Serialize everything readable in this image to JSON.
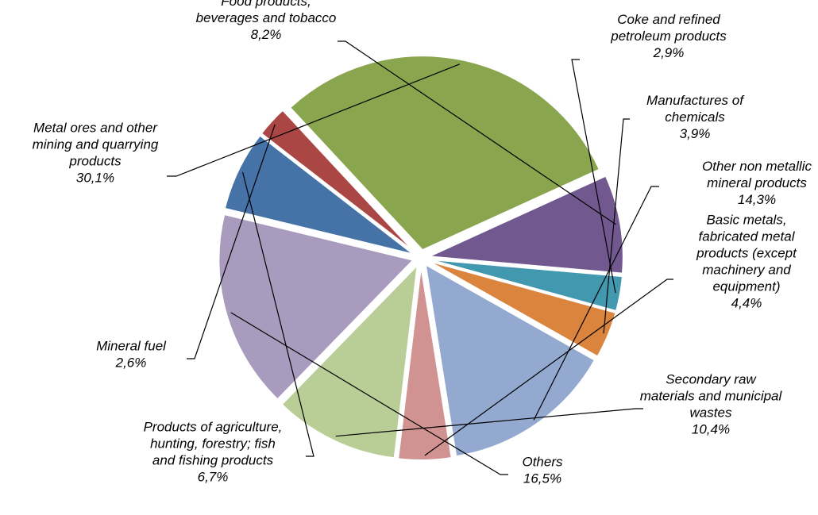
{
  "chart_data": {
    "type": "pie",
    "title": "",
    "start_angle_deg": 95,
    "direction": "clockwise",
    "exploded": true,
    "slices": [
      {
        "label_lines": [
          "Coke and refined",
          "petroleum products"
        ],
        "value_label": "2,9%",
        "value": 2.9,
        "color": "#4198AF"
      },
      {
        "label_lines": [
          "Manufactures of",
          "chemicals"
        ],
        "value_label": "3,9%",
        "value": 3.9,
        "color": "#DB843D"
      },
      {
        "label_lines": [
          "Other non metallic",
          "mineral products"
        ],
        "value_label": "14,3%",
        "value": 14.3,
        "color": "#93A9CF"
      },
      {
        "label_lines": [
          "Basic metals,",
          "fabricated metal",
          "products (except",
          "machinery and",
          "equipment)"
        ],
        "value_label": "4,4%",
        "value": 4.4,
        "color": "#D19392"
      },
      {
        "label_lines": [
          "Secondary raw",
          "materials and municipal",
          "wastes"
        ],
        "value_label": "10,4%",
        "value": 10.4,
        "color": "#B9CD96"
      },
      {
        "label_lines": [
          "Others"
        ],
        "value_label": "16,5%",
        "value": 16.5,
        "color": "#A99BBD"
      },
      {
        "label_lines": [
          "Products of agriculture,",
          "hunting, forestry; fish",
          "and fishing products"
        ],
        "value_label": "6,7%",
        "value": 6.7,
        "color": "#4572A7"
      },
      {
        "label_lines": [
          "Mineral fuel"
        ],
        "value_label": "2,6%",
        "value": 2.6,
        "color": "#AA4643"
      },
      {
        "label_lines": [
          "Metal ores and other",
          "mining and quarrying",
          "products"
        ],
        "value_label": "30,1%",
        "value": 30.1,
        "color": "#89A54E"
      },
      {
        "label_lines": [
          "Food products,",
          "beverages and tobacco"
        ],
        "value_label": "8,2%",
        "value": 8.2,
        "color": "#71588F"
      }
    ]
  }
}
